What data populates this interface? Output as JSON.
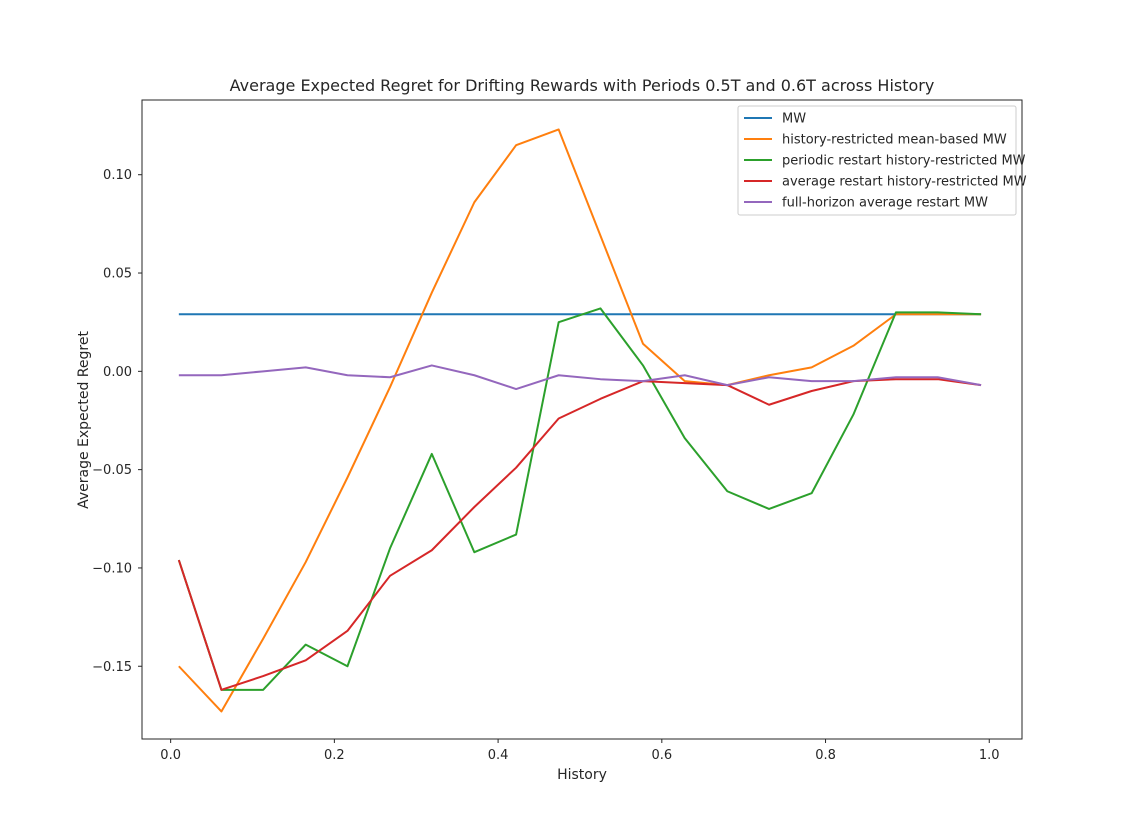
{
  "chart_data": {
    "type": "line",
    "title": "Average Expected Regret for Drifting Rewards with Periods 0.5T and 0.6T across History",
    "xlabel": "History",
    "ylabel": "Average Expected Regret",
    "xlim": [
      -0.035,
      1.04
    ],
    "ylim": [
      -0.187,
      0.138
    ],
    "xticks": [
      0.0,
      0.2,
      0.4,
      0.6,
      0.8,
      1.0
    ],
    "xtick_labels": [
      "0.0",
      "0.2",
      "0.4",
      "0.6",
      "0.8",
      "1.0"
    ],
    "yticks": [
      -0.15,
      -0.1,
      -0.05,
      0.0,
      0.05,
      0.1
    ],
    "ytick_labels": [
      "−0.15",
      "−0.10",
      "−0.05",
      "0.00",
      "0.05",
      "0.10"
    ],
    "grid": false,
    "legend_position": "top-right",
    "x": [
      0.01,
      0.062,
      0.113,
      0.165,
      0.216,
      0.268,
      0.319,
      0.371,
      0.422,
      0.474,
      0.525,
      0.577,
      0.628,
      0.68,
      0.731,
      0.783,
      0.834,
      0.886,
      0.937,
      0.99
    ],
    "series": [
      {
        "name": "MW",
        "color": "#1f77b4",
        "values": [
          0.029,
          0.029,
          0.029,
          0.029,
          0.029,
          0.029,
          0.029,
          0.029,
          0.029,
          0.029,
          0.029,
          0.029,
          0.029,
          0.029,
          0.029,
          0.029,
          0.029,
          0.029,
          0.029,
          0.029
        ]
      },
      {
        "name": "history-restricted mean-based MW",
        "color": "#ff7f0e",
        "values": [
          -0.15,
          -0.173,
          -0.136,
          -0.097,
          -0.054,
          -0.008,
          0.04,
          0.086,
          0.115,
          0.123,
          0.069,
          0.014,
          -0.005,
          -0.007,
          -0.002,
          0.002,
          0.013,
          0.029,
          0.029,
          0.029
        ]
      },
      {
        "name": "periodic restart history-restricted MW",
        "color": "#2ca02c",
        "values": [
          -0.096,
          -0.162,
          -0.162,
          -0.139,
          -0.15,
          -0.09,
          -0.042,
          -0.092,
          -0.083,
          0.025,
          0.032,
          0.003,
          -0.034,
          -0.061,
          -0.07,
          -0.062,
          -0.022,
          0.03,
          0.03,
          0.029
        ]
      },
      {
        "name": "average restart history-restricted MW",
        "color": "#d62728",
        "values": [
          -0.096,
          -0.162,
          -0.155,
          -0.147,
          -0.132,
          -0.104,
          -0.091,
          -0.069,
          -0.049,
          -0.024,
          -0.014,
          -0.005,
          -0.006,
          -0.007,
          -0.017,
          -0.01,
          -0.005,
          -0.004,
          -0.004,
          -0.007
        ]
      },
      {
        "name": "full-horizon average restart MW",
        "color": "#9467bd",
        "values": [
          -0.002,
          -0.002,
          0.0,
          0.002,
          -0.002,
          -0.003,
          0.003,
          -0.002,
          -0.009,
          -0.002,
          -0.004,
          -0.005,
          -0.002,
          -0.007,
          -0.003,
          -0.005,
          -0.005,
          -0.003,
          -0.003,
          -0.007
        ]
      }
    ]
  }
}
